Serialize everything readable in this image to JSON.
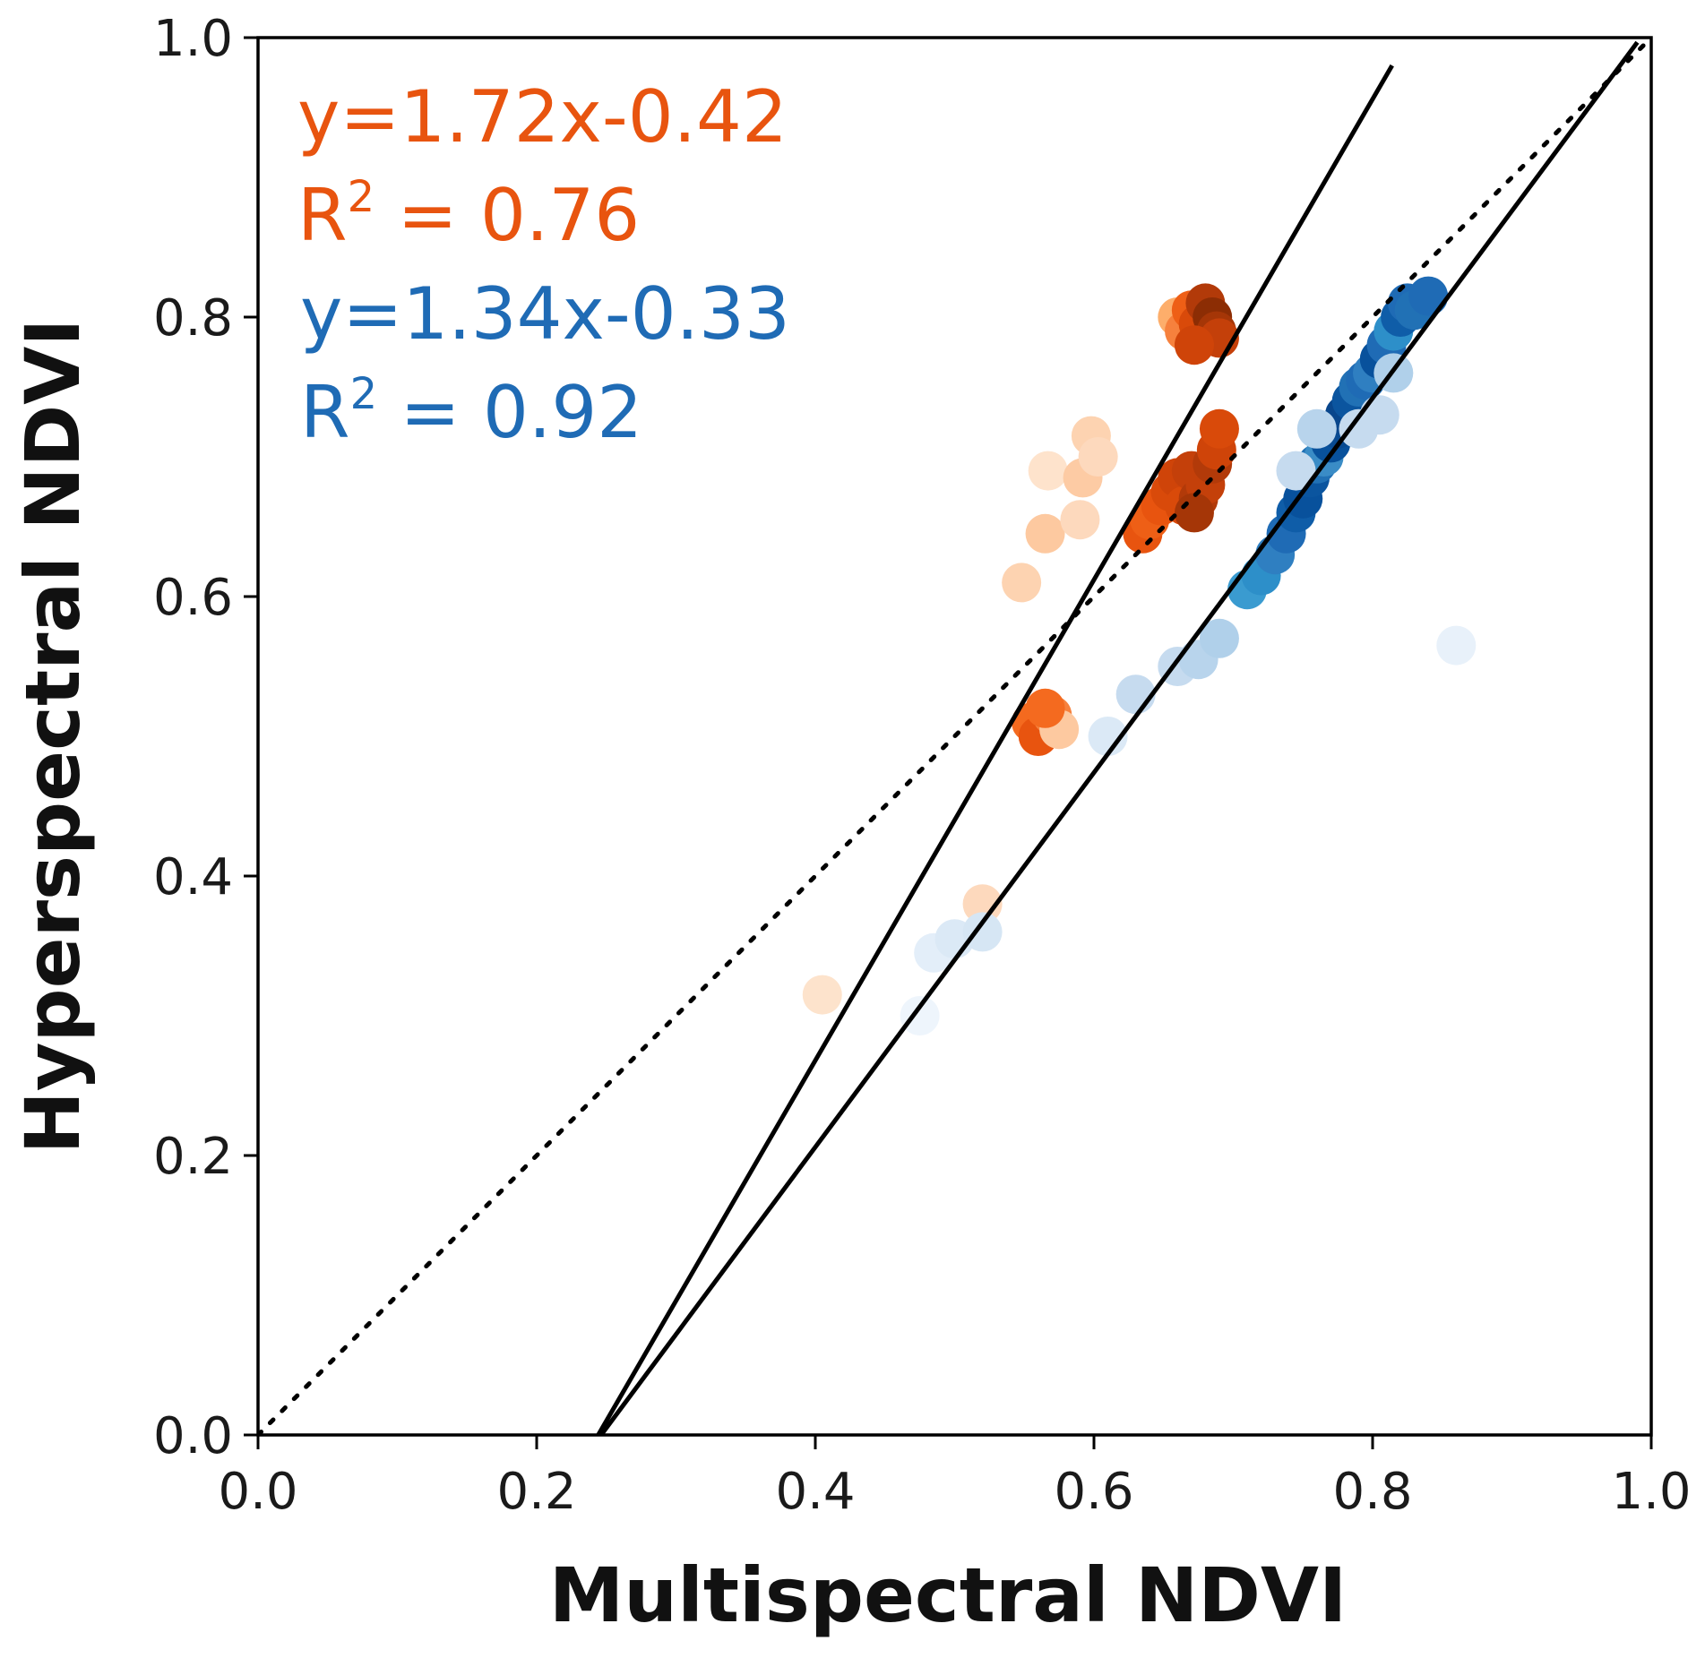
{
  "chart_data": {
    "type": "scatter",
    "title": "",
    "xlabel": "Multispectral NDVI",
    "ylabel": "Hyperspectral NDVI",
    "xlim": [
      0.0,
      1.0
    ],
    "ylim": [
      0.0,
      1.0
    ],
    "xticks": [
      "0.0",
      "0.2",
      "0.4",
      "0.6",
      "0.8",
      "1.0"
    ],
    "yticks": [
      "0.0",
      "0.2",
      "0.4",
      "0.6",
      "0.8",
      "1.0"
    ],
    "grid": false,
    "annotations": {
      "orange_equation": "y=1.72x-0.42",
      "orange_r2_prefix": "R",
      "orange_r2_sup": "2",
      "orange_r2_value": " = 0.76",
      "blue_equation": "y=1.34x-0.33",
      "blue_r2_prefix": "R",
      "blue_r2_sup": "2",
      "blue_r2_value": " = 0.92"
    },
    "colors": {
      "orange_annotation": "#e8540f",
      "blue_annotation": "#1f6bb5",
      "line": "#000000"
    },
    "reference_line": {
      "name": "1:1 line",
      "style": "dotted",
      "x": [
        0.0,
        1.0
      ],
      "y": [
        0.0,
        1.0
      ]
    },
    "fit_lines": [
      {
        "name": "orange fit",
        "slope": 1.72,
        "intercept": -0.42,
        "x": [
          0.244,
          0.814
        ]
      },
      {
        "name": "blue fit",
        "slope": 1.34,
        "intercept": -0.33,
        "x": [
          0.246,
          0.99
        ]
      }
    ],
    "series": [
      {
        "name": "orange",
        "points": [
          [
            0.405,
            0.315,
            "#fde3cc"
          ],
          [
            0.52,
            0.38,
            "#fdd9bd"
          ],
          [
            0.548,
            0.61,
            "#fdd3b1"
          ],
          [
            0.565,
            0.645,
            "#fdc9a0"
          ],
          [
            0.567,
            0.69,
            "#fee3cc"
          ],
          [
            0.59,
            0.655,
            "#fdd9bd"
          ],
          [
            0.592,
            0.685,
            "#fdcba4"
          ],
          [
            0.598,
            0.715,
            "#fdd3b1"
          ],
          [
            0.603,
            0.7,
            "#fdd9bd"
          ],
          [
            0.555,
            0.51,
            "#f46a1f"
          ],
          [
            0.56,
            0.5,
            "#e8540f"
          ],
          [
            0.57,
            0.515,
            "#f6813d"
          ],
          [
            0.575,
            0.505,
            "#fdc9a0"
          ],
          [
            0.565,
            0.52,
            "#f46a1f"
          ],
          [
            0.635,
            0.645,
            "#e8540f"
          ],
          [
            0.64,
            0.655,
            "#ee5f16"
          ],
          [
            0.648,
            0.665,
            "#e8540f"
          ],
          [
            0.655,
            0.675,
            "#d94a0a"
          ],
          [
            0.66,
            0.685,
            "#cf4409"
          ],
          [
            0.665,
            0.665,
            "#d94a0a"
          ],
          [
            0.67,
            0.69,
            "#c4400a"
          ],
          [
            0.675,
            0.67,
            "#b23a09"
          ],
          [
            0.68,
            0.68,
            "#c4400a"
          ],
          [
            0.685,
            0.695,
            "#b23a09"
          ],
          [
            0.688,
            0.705,
            "#cf4409"
          ],
          [
            0.69,
            0.72,
            "#d94a0a"
          ],
          [
            0.672,
            0.66,
            "#a53607"
          ],
          [
            0.66,
            0.8,
            "#fdae6b"
          ],
          [
            0.665,
            0.79,
            "#f6813d"
          ],
          [
            0.67,
            0.805,
            "#ee5f16"
          ],
          [
            0.675,
            0.795,
            "#d94a0a"
          ],
          [
            0.68,
            0.81,
            "#b23a09"
          ],
          [
            0.685,
            0.8,
            "#8c2d04"
          ],
          [
            0.688,
            0.79,
            "#a53607"
          ],
          [
            0.69,
            0.785,
            "#c4400a"
          ],
          [
            0.672,
            0.78,
            "#cf4409"
          ]
        ]
      },
      {
        "name": "blue",
        "points": [
          [
            0.475,
            0.3,
            "#eef5fc"
          ],
          [
            0.485,
            0.345,
            "#e3eef9"
          ],
          [
            0.5,
            0.355,
            "#dbe9f6"
          ],
          [
            0.52,
            0.36,
            "#d6e6f4"
          ],
          [
            0.61,
            0.5,
            "#dbe9f6"
          ],
          [
            0.63,
            0.53,
            "#c6dbef"
          ],
          [
            0.66,
            0.55,
            "#c6dbef"
          ],
          [
            0.675,
            0.555,
            "#b8d4ec"
          ],
          [
            0.69,
            0.57,
            "#b0d0ea"
          ],
          [
            0.86,
            0.565,
            "#e8f1fa"
          ],
          [
            0.71,
            0.605,
            "#3a9bd0"
          ],
          [
            0.72,
            0.615,
            "#2d8fc9"
          ],
          [
            0.73,
            0.63,
            "#2f7fc1"
          ],
          [
            0.738,
            0.645,
            "#1f6bb5"
          ],
          [
            0.745,
            0.66,
            "#0f5da8"
          ],
          [
            0.75,
            0.67,
            "#08519c"
          ],
          [
            0.755,
            0.685,
            "#0b559f"
          ],
          [
            0.76,
            0.695,
            "#2171b5"
          ],
          [
            0.765,
            0.7,
            "#3a8cc6"
          ],
          [
            0.77,
            0.71,
            "#08519c"
          ],
          [
            0.775,
            0.72,
            "#084a91"
          ],
          [
            0.78,
            0.73,
            "#08468c"
          ],
          [
            0.785,
            0.74,
            "#0b559f"
          ],
          [
            0.79,
            0.75,
            "#2171b5"
          ],
          [
            0.795,
            0.755,
            "#1f6bb5"
          ],
          [
            0.8,
            0.76,
            "#2f7fc1"
          ],
          [
            0.805,
            0.77,
            "#08519c"
          ],
          [
            0.81,
            0.78,
            "#1f6bb5"
          ],
          [
            0.815,
            0.79,
            "#2d8fc9"
          ],
          [
            0.82,
            0.8,
            "#0f5da8"
          ],
          [
            0.825,
            0.81,
            "#1f6bb5"
          ],
          [
            0.83,
            0.805,
            "#2171b5"
          ],
          [
            0.84,
            0.815,
            "#1f6bb5"
          ],
          [
            0.745,
            0.69,
            "#c6dbef"
          ],
          [
            0.76,
            0.72,
            "#b8d4ec"
          ],
          [
            0.79,
            0.72,
            "#c6dbef"
          ],
          [
            0.805,
            0.73,
            "#c6dbef"
          ],
          [
            0.815,
            0.76,
            "#b0d0ea"
          ]
        ]
      }
    ]
  }
}
